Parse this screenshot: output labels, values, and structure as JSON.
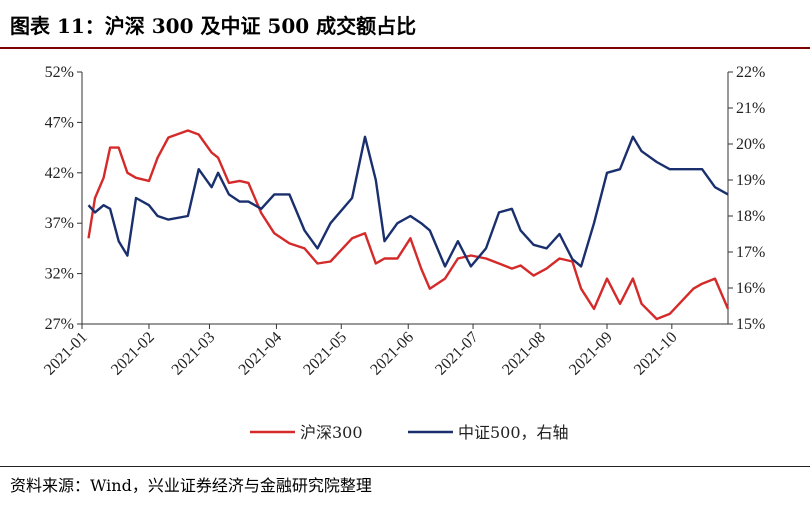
{
  "header": {
    "title": "图表 11：沪深 300 及中证 500 成交额占比"
  },
  "footer": {
    "source": "资料来源：Wind，兴业证券经济与金融研究院整理"
  },
  "colors": {
    "hs300": "#d42a2a",
    "zz500": "#1a2f6e",
    "rule": "#7f0000"
  },
  "chart_data": {
    "type": "line",
    "x_tick_labels": [
      "2021-01",
      "2021-02",
      "2021-03",
      "2021-04",
      "2021-05",
      "2021-06",
      "2021-07",
      "2021-08",
      "2021-09",
      "2021-10"
    ],
    "y_left": {
      "ticks": [
        "27%",
        "32%",
        "37%",
        "42%",
        "47%",
        "52%"
      ],
      "range": [
        27,
        52
      ]
    },
    "y_right": {
      "ticks": [
        "15%",
        "16%",
        "17%",
        "18%",
        "19%",
        "20%",
        "21%",
        "22%"
      ],
      "range": [
        15,
        22
      ]
    },
    "series": [
      {
        "name": "沪深300",
        "axis": "left",
        "color": "#d42a2a",
        "x": [
          "2021-01-04",
          "2021-01-07",
          "2021-01-11",
          "2021-01-14",
          "2021-01-18",
          "2021-01-22",
          "2021-01-26",
          "2021-02-01",
          "2021-02-05",
          "2021-02-10",
          "2021-02-19",
          "2021-02-24",
          "2021-03-02",
          "2021-03-05",
          "2021-03-10",
          "2021-03-15",
          "2021-03-19",
          "2021-03-25",
          "2021-03-31",
          "2021-04-07",
          "2021-04-14",
          "2021-04-20",
          "2021-04-26",
          "2021-05-06",
          "2021-05-12",
          "2021-05-17",
          "2021-05-21",
          "2021-05-27",
          "2021-06-02",
          "2021-06-07",
          "2021-06-11",
          "2021-06-18",
          "2021-06-24",
          "2021-06-30",
          "2021-07-07",
          "2021-07-13",
          "2021-07-19",
          "2021-07-23",
          "2021-07-29",
          "2021-08-04",
          "2021-08-10",
          "2021-08-16",
          "2021-08-20",
          "2021-08-26",
          "2021-09-01",
          "2021-09-07",
          "2021-09-13",
          "2021-09-17",
          "2021-09-24",
          "2021-09-30",
          "2021-10-11",
          "2021-10-15",
          "2021-10-21",
          "2021-10-27"
        ],
        "values": [
          35.5,
          39.5,
          41.5,
          44.5,
          44.5,
          42,
          41.5,
          41.2,
          43.5,
          45.5,
          46.2,
          45.8,
          44,
          43.5,
          41,
          41.2,
          41,
          38,
          36,
          35,
          34.5,
          33,
          33.2,
          35.5,
          36,
          33,
          33.5,
          33.5,
          35.5,
          32.5,
          30.5,
          31.5,
          33.5,
          33.8,
          33.5,
          33,
          32.5,
          32.8,
          31.8,
          32.5,
          33.5,
          33.2,
          30.5,
          28.5,
          31.5,
          29,
          31.5,
          29,
          27.5,
          28,
          30.5,
          31,
          31.5,
          28.5
        ]
      },
      {
        "name": "中证500，右轴",
        "axis": "right",
        "color": "#1a2f6e",
        "x": [
          "2021-01-04",
          "2021-01-07",
          "2021-01-11",
          "2021-01-14",
          "2021-01-18",
          "2021-01-22",
          "2021-01-26",
          "2021-02-01",
          "2021-02-05",
          "2021-02-10",
          "2021-02-19",
          "2021-02-24",
          "2021-03-02",
          "2021-03-05",
          "2021-03-10",
          "2021-03-15",
          "2021-03-19",
          "2021-03-25",
          "2021-03-31",
          "2021-04-07",
          "2021-04-14",
          "2021-04-20",
          "2021-04-26",
          "2021-05-06",
          "2021-05-12",
          "2021-05-17",
          "2021-05-21",
          "2021-05-27",
          "2021-06-02",
          "2021-06-07",
          "2021-06-11",
          "2021-06-18",
          "2021-06-24",
          "2021-06-30",
          "2021-07-07",
          "2021-07-13",
          "2021-07-19",
          "2021-07-23",
          "2021-07-29",
          "2021-08-04",
          "2021-08-10",
          "2021-08-16",
          "2021-08-20",
          "2021-08-26",
          "2021-09-01",
          "2021-09-07",
          "2021-09-13",
          "2021-09-17",
          "2021-09-24",
          "2021-09-30",
          "2021-10-11",
          "2021-10-15",
          "2021-10-21",
          "2021-10-27"
        ],
        "values": [
          18.3,
          18.1,
          18.3,
          18.2,
          17.3,
          16.9,
          18.5,
          18.3,
          18.0,
          17.9,
          18.0,
          19.3,
          18.8,
          19.2,
          18.6,
          18.4,
          18.4,
          18.2,
          18.6,
          18.6,
          17.6,
          17.1,
          17.8,
          18.5,
          20.2,
          19.0,
          17.3,
          17.8,
          18.0,
          17.8,
          17.6,
          16.6,
          17.3,
          16.6,
          17.1,
          18.1,
          18.2,
          17.6,
          17.2,
          17.1,
          17.5,
          16.8,
          16.6,
          17.8,
          19.2,
          19.3,
          20.2,
          19.8,
          19.5,
          19.3,
          19.3,
          19.3,
          18.8,
          18.6
        ]
      }
    ],
    "legend": {
      "placement": "bottom-center"
    },
    "grid": false
  }
}
